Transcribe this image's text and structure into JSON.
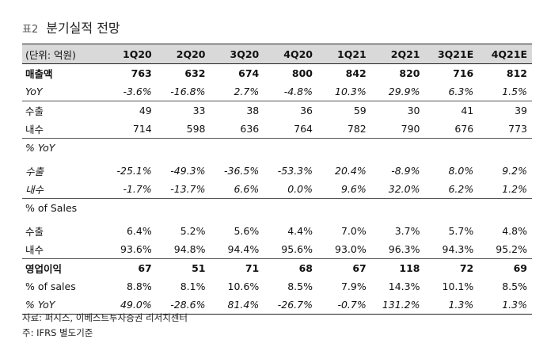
{
  "title": {
    "tag": "표2",
    "text": "분기실적 전망"
  },
  "table": {
    "unit": "(단위: 억원)",
    "columns": [
      "1Q20",
      "2Q20",
      "3Q20",
      "4Q20",
      "1Q21",
      "2Q21",
      "3Q21E",
      "4Q21E"
    ],
    "rows": [
      {
        "label": "매출액",
        "values": [
          "763",
          "632",
          "674",
          "800",
          "842",
          "820",
          "716",
          "812"
        ],
        "style": "bold"
      },
      {
        "label": "YoY",
        "values": [
          "-3.6%",
          "-16.8%",
          "2.7%",
          "-4.8%",
          "10.3%",
          "29.9%",
          "6.3%",
          "1.5%"
        ],
        "style": "italic"
      },
      {
        "label": "수출",
        "values": [
          "49",
          "33",
          "38",
          "36",
          "59",
          "30",
          "41",
          "39"
        ],
        "style": "sep"
      },
      {
        "label": "내수",
        "values": [
          "714",
          "598",
          "636",
          "764",
          "782",
          "790",
          "676",
          "773"
        ],
        "style": ""
      },
      {
        "label": "% YoY",
        "values": [
          "",
          "",
          "",
          "",
          "",
          "",
          "",
          ""
        ],
        "style": "sep italic"
      },
      {
        "label": "수출",
        "values": [
          "-25.1%",
          "-49.3%",
          "-36.5%",
          "-53.3%",
          "20.4%",
          "-8.9%",
          "8.0%",
          "9.2%"
        ],
        "style": "italic gap"
      },
      {
        "label": "내수",
        "values": [
          "-1.7%",
          "-13.7%",
          "6.6%",
          "0.0%",
          "9.6%",
          "32.0%",
          "6.2%",
          "1.2%"
        ],
        "style": "italic"
      },
      {
        "label": "% of Sales",
        "values": [
          "",
          "",
          "",
          "",
          "",
          "",
          "",
          ""
        ],
        "style": "sep"
      },
      {
        "label": "수출",
        "values": [
          "6.4%",
          "5.2%",
          "5.6%",
          "4.4%",
          "7.0%",
          "3.7%",
          "5.7%",
          "4.8%"
        ],
        "style": "gap"
      },
      {
        "label": "내수",
        "values": [
          "93.6%",
          "94.8%",
          "94.4%",
          "95.6%",
          "93.0%",
          "96.3%",
          "94.3%",
          "95.2%"
        ],
        "style": ""
      },
      {
        "label": "영업이익",
        "values": [
          "67",
          "51",
          "71",
          "68",
          "67",
          "118",
          "72",
          "69"
        ],
        "style": "bold sep"
      },
      {
        "label": "% of sales",
        "values": [
          "8.8%",
          "8.1%",
          "10.6%",
          "8.5%",
          "7.9%",
          "14.3%",
          "10.1%",
          "8.5%"
        ],
        "style": ""
      },
      {
        "label": "% YoY",
        "values": [
          "49.0%",
          "-28.6%",
          "81.4%",
          "-26.7%",
          "-0.7%",
          "131.2%",
          "1.3%",
          "1.3%"
        ],
        "style": "italic last"
      }
    ]
  },
  "notes": [
    "자료: 퍼시스, 이베스트투자증권 리서치센터",
    "주: IFRS 별도기준"
  ]
}
